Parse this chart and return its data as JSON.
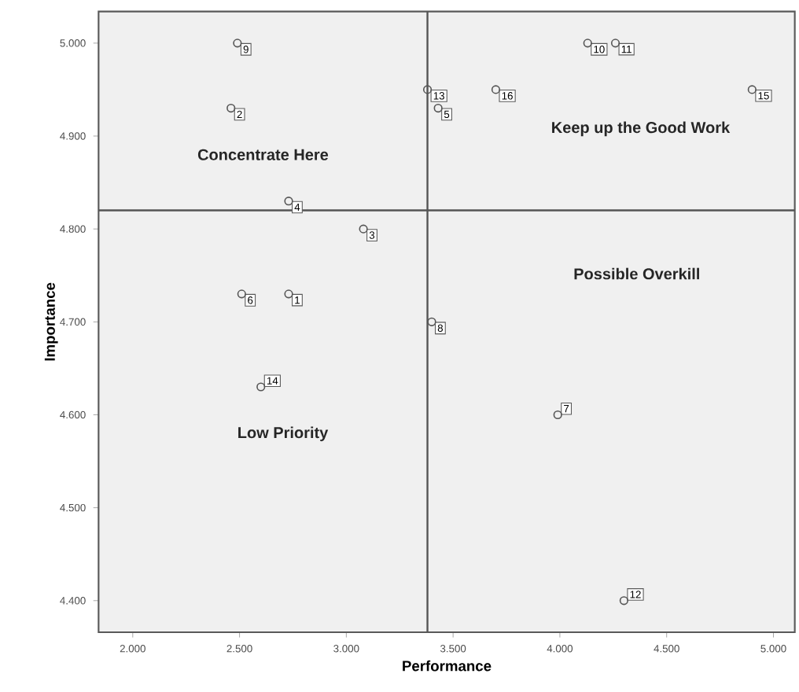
{
  "chart_data": {
    "type": "scatter",
    "xlabel": "Performance",
    "ylabel": "Importance",
    "x": [
      2.73,
      2.46,
      3.08,
      2.73,
      3.43,
      2.51,
      3.99,
      3.4,
      2.49,
      4.13,
      4.26,
      4.3,
      3.38,
      2.6,
      4.9,
      3.7
    ],
    "values": [
      4.73,
      4.93,
      4.8,
      4.83,
      4.93,
      4.73,
      4.6,
      4.7,
      5.0,
      5.0,
      5.0,
      4.4,
      4.95,
      4.63,
      4.95,
      4.95
    ],
    "color": "#555555",
    "marker": "circle",
    "xlim": [
      1.84,
      5.1
    ],
    "ylim": [
      4.366,
      5.034
    ],
    "xticks": [
      {
        "value": 2,
        "label": "2.000"
      },
      {
        "value": 2.5,
        "label": "2.500"
      },
      {
        "value": 3,
        "label": "3.000"
      },
      {
        "value": 3.5,
        "label": "3.500"
      },
      {
        "value": 4,
        "label": "4.000"
      },
      {
        "value": 4.5,
        "label": "4.500"
      },
      {
        "value": 5,
        "label": "5.000"
      }
    ],
    "yticks": [
      {
        "value": 4.4,
        "label": "4.400"
      },
      {
        "value": 4.5,
        "label": "4.500"
      },
      {
        "value": 4.6,
        "label": "4.600"
      },
      {
        "value": 4.7,
        "label": "4.700"
      },
      {
        "value": 4.8,
        "label": "4.800"
      },
      {
        "value": 4.9,
        "label": "4.900"
      },
      {
        "value": 5,
        "label": "5.000"
      }
    ],
    "ref_lines": [
      {
        "axis": "x",
        "value": 3.38,
        "color": "#555555"
      },
      {
        "axis": "y",
        "value": 4.82,
        "color": "#555555"
      }
    ],
    "annotations": [
      "Concentrate Here",
      "Keep up the Good Work",
      "Possible Overkill",
      "Low Priority",
      {
        "text": "1",
        "x": 2.73,
        "y": 4.73
      },
      {
        "text": "2",
        "x": 2.46,
        "y": 4.93
      },
      {
        "text": "3",
        "x": 3.08,
        "y": 4.8
      },
      {
        "text": "4",
        "x": 2.73,
        "y": 4.83
      },
      {
        "text": "5",
        "x": 3.43,
        "y": 4.93
      },
      {
        "text": "6",
        "x": 2.51,
        "y": 4.73
      },
      {
        "text": "7",
        "x": 3.99,
        "y": 4.6
      },
      {
        "text": "8",
        "x": 3.4,
        "y": 4.7
      },
      {
        "text": "9",
        "x": 2.49,
        "y": 5.0
      },
      {
        "text": "10",
        "x": 4.13,
        "y": 5.0
      },
      {
        "text": "11",
        "x": 4.26,
        "y": 5.0
      },
      {
        "text": "12",
        "x": 4.3,
        "y": 4.4
      },
      {
        "text": "13",
        "x": 3.38,
        "y": 4.95
      },
      {
        "text": "14",
        "x": 2.6,
        "y": 4.63
      },
      {
        "text": "15",
        "x": 4.9,
        "y": 4.95
      },
      {
        "text": "16",
        "x": 3.7,
        "y": 4.95
      }
    ]
  }
}
